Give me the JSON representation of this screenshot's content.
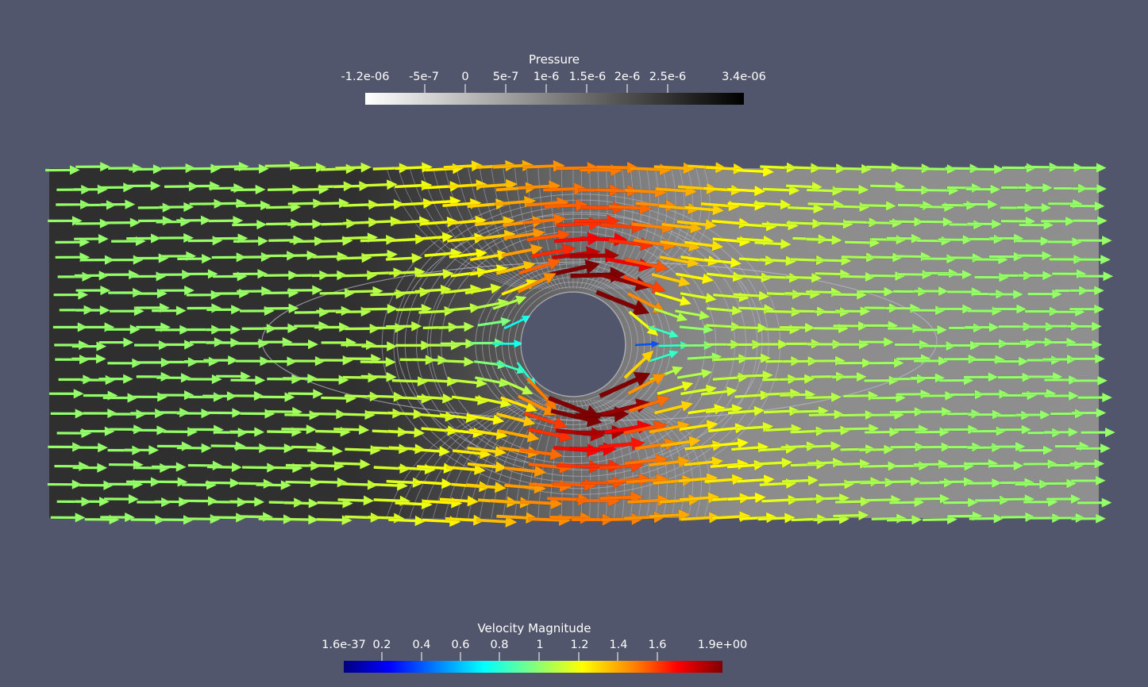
{
  "pressure_legend": {
    "title": "Pressure",
    "labels": [
      "-1.2e-06",
      "-5e-7",
      "0",
      "5e-7",
      "1e-6",
      "1.5e-6",
      "2e-6",
      "2.5e-6",
      "3.4e-06"
    ],
    "range": [
      -1.2e-06,
      3.4e-06
    ],
    "colormap": [
      "#ffffff",
      "#000000"
    ]
  },
  "velocity_legend": {
    "title": "Velocity Magnitude",
    "labels": [
      "1.6e-37",
      "0.2",
      "0.4",
      "0.6",
      "0.8",
      "1",
      "1.2",
      "1.4",
      "1.6",
      "1.9e+00"
    ],
    "range": [
      0,
      1.9
    ],
    "colormap": [
      "#00007f",
      "#0000ff",
      "#00ffff",
      "#7fff7f",
      "#ffff00",
      "#ff7f00",
      "#ff0000",
      "#7f0000"
    ]
  },
  "colors": {
    "background": "#52566d",
    "inlet_pressure": "#2f2f2f",
    "outlet_pressure": "#8f8f8f",
    "contour_line": "#b9bccb",
    "freestream_arrow": "#7cc83c"
  },
  "scene": {
    "field": "velocity glyphs over pressure",
    "obstacle": "cylinder"
  }
}
